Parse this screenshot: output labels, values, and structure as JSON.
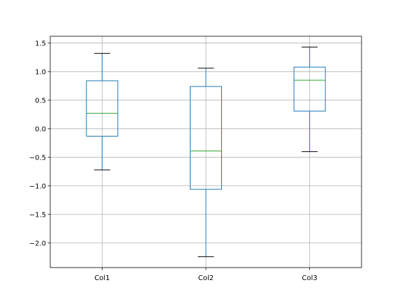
{
  "chart_data": {
    "type": "boxplot",
    "title": "",
    "xlabel": "",
    "ylabel": "",
    "ylim": [
      -2.43,
      1.62
    ],
    "grid": true,
    "categories": [
      "Col1",
      "Col2",
      "Col3"
    ],
    "boxes": [
      {
        "name": "Col1",
        "whisker_low": -0.72,
        "q1": -0.13,
        "median": 0.27,
        "q3": 0.84,
        "whisker_high": 1.32
      },
      {
        "name": "Col2",
        "whisker_low": -2.24,
        "q1": -1.06,
        "median": -0.39,
        "q3": 0.74,
        "whisker_high": 1.06
      },
      {
        "name": "Col3",
        "whisker_low": -0.4,
        "q1": 0.31,
        "median": 0.85,
        "q3": 1.08,
        "whisker_high": 1.43
      }
    ],
    "y_ticks": [
      1.5,
      1.0,
      0.5,
      0.0,
      -0.5,
      -1.0,
      -1.5,
      -2.0
    ],
    "y_tick_labels": [
      "1.5",
      "1.0",
      "0.5",
      "0.0",
      "−0.5",
      "−1.0",
      "−1.5",
      "−2.0"
    ],
    "colors": {
      "box": "#1f77b4",
      "median": "#2ca02c",
      "whisker_cap": "#000000",
      "grid": "#b0b0b0",
      "axis": "#000000"
    }
  }
}
